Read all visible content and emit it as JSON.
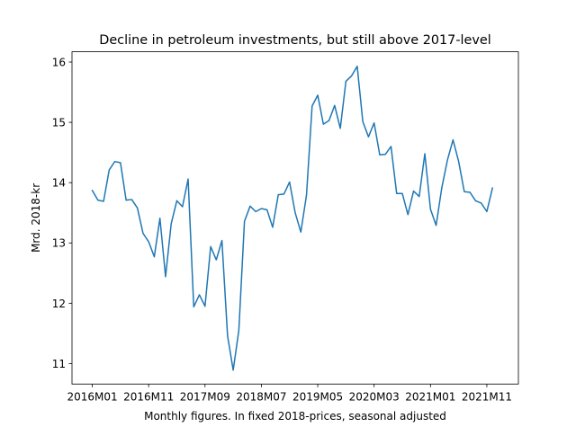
{
  "chart_data": {
    "type": "line",
    "title": "Decline in petroleum investments, but still above 2017-level",
    "xlabel": "Monthly figures. In fixed 2018-prices, seasonal adjusted",
    "ylabel": "Mrd. 2018-kr",
    "x_ticks": [
      "2016M01",
      "2016M11",
      "2017M09",
      "2018M07",
      "2019M05",
      "2020M03",
      "2021M01",
      "2021M11"
    ],
    "x_tick_positions": [
      0,
      10,
      20,
      30,
      40,
      50,
      60,
      70
    ],
    "y_ticks": [
      11,
      12,
      13,
      14,
      15,
      16
    ],
    "xlim": [
      -3.6,
      75.6
    ],
    "ylim": [
      10.66,
      16.17
    ],
    "grid": false,
    "series": [
      {
        "color": "#1f77b4",
        "values": [
          13.87,
          13.71,
          13.69,
          14.21,
          14.35,
          14.33,
          13.71,
          13.72,
          13.58,
          13.16,
          13.02,
          12.77,
          13.41,
          12.44,
          13.32,
          13.7,
          13.6,
          14.06,
          11.94,
          12.14,
          11.95,
          12.94,
          12.72,
          13.04,
          11.46,
          10.89,
          11.55,
          13.36,
          13.61,
          13.52,
          13.57,
          13.55,
          13.26,
          13.8,
          13.81,
          14.01,
          13.5,
          13.18,
          13.79,
          15.27,
          15.45,
          14.97,
          15.03,
          15.28,
          14.9,
          15.68,
          15.77,
          15.93,
          15.01,
          14.76,
          14.99,
          14.46,
          14.47,
          14.6,
          13.82,
          13.82,
          13.47,
          13.86,
          13.77,
          14.48,
          13.56,
          13.29,
          13.91,
          14.37,
          14.71,
          14.35,
          13.85,
          13.84,
          13.7,
          13.66,
          13.52,
          13.91
        ]
      }
    ]
  }
}
